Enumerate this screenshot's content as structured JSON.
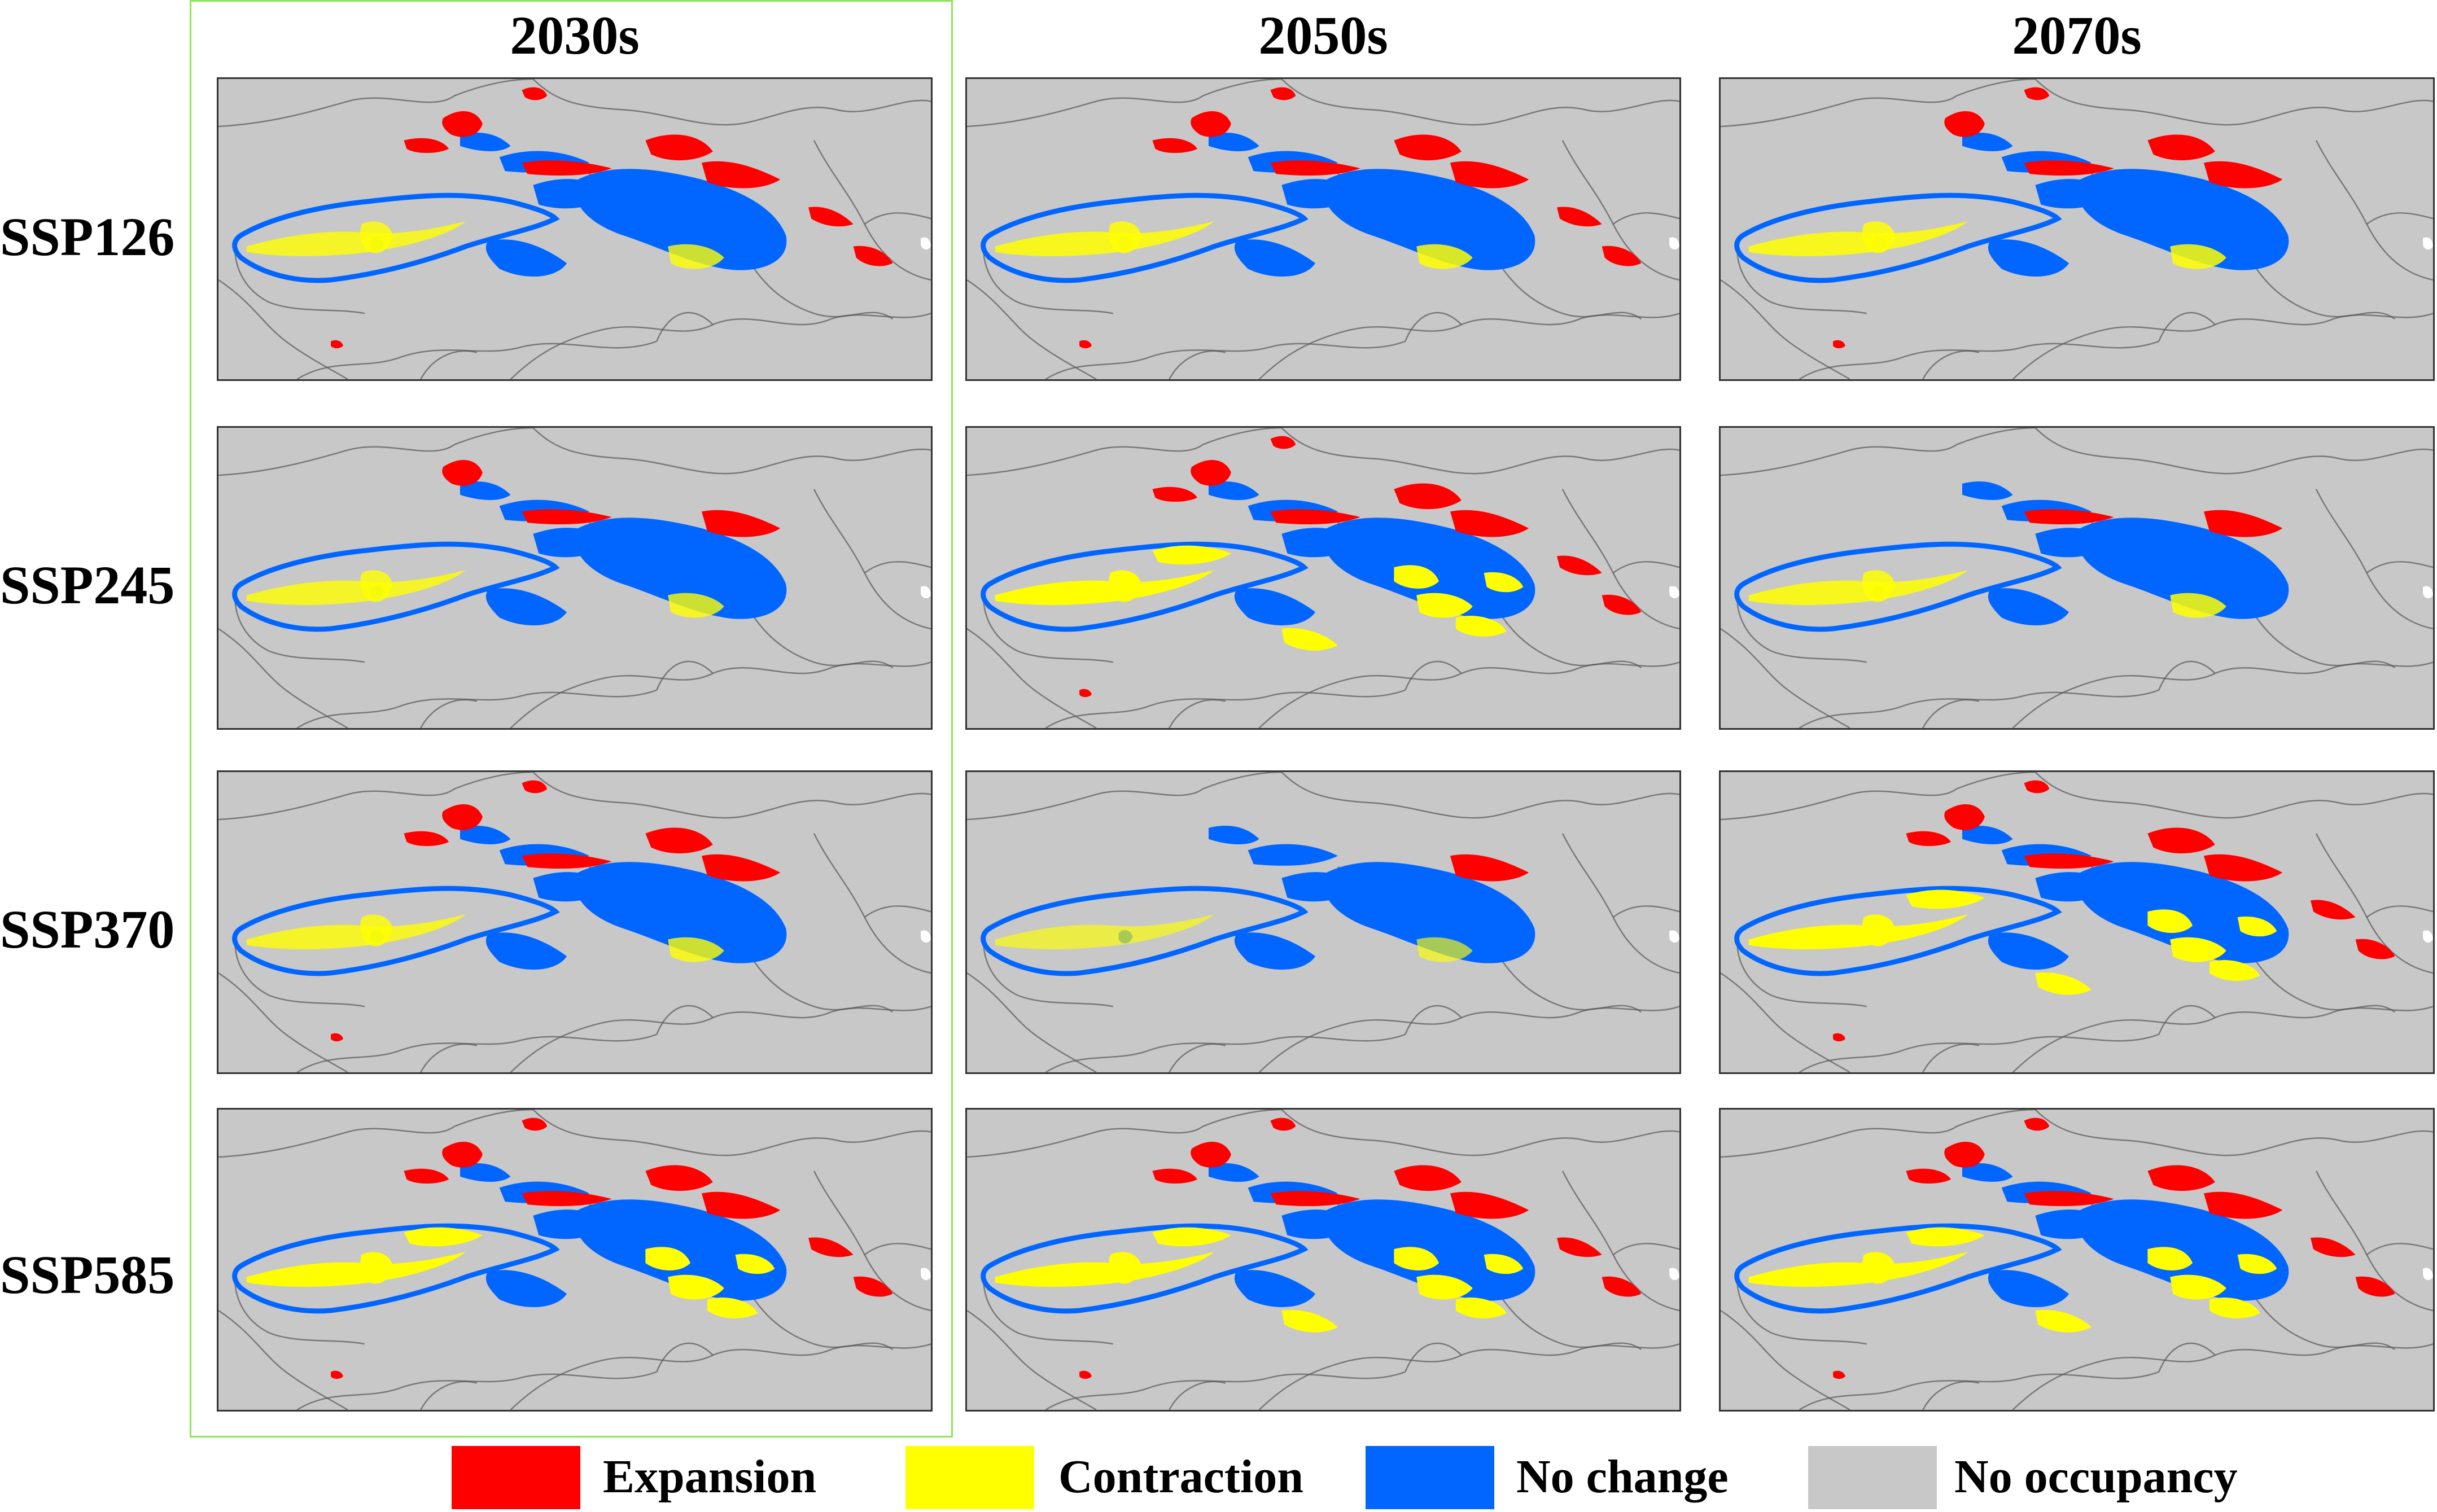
{
  "columns": [
    "2030s",
    "2050s",
    "2070s"
  ],
  "rows": [
    "SSP126",
    "SSP245",
    "SSP370",
    "SSP585"
  ],
  "selected_column": "2030s",
  "legend": [
    {
      "label": "Expansion",
      "color": "#ff0000"
    },
    {
      "label": "Contraction",
      "color": "#ffff00"
    },
    {
      "label": "No change",
      "color": "#0066ff"
    },
    {
      "label": "No occupancy",
      "color": "#c8c8c8"
    }
  ],
  "panels": [
    [
      {
        "expansion": 0.9,
        "contraction": 0.3
      },
      {
        "expansion": 0.75,
        "contraction": 0.35
      },
      {
        "expansion": 0.5,
        "contraction": 0.35
      }
    ],
    [
      {
        "expansion": 0.25,
        "contraction": 0.3
      },
      {
        "expansion": 0.9,
        "contraction": 0.9
      },
      {
        "expansion": 0.15,
        "contraction": 0.35
      }
    ],
    [
      {
        "expansion": 0.55,
        "contraction": 0.3
      },
      {
        "expansion": 0.05,
        "contraction": 0.15
      },
      {
        "expansion": 0.9,
        "contraction": 0.9
      }
    ],
    [
      {
        "expansion": 0.7,
        "contraction": 0.75
      },
      {
        "expansion": 0.8,
        "contraction": 0.85
      },
      {
        "expansion": 1.0,
        "contraction": 1.0
      }
    ]
  ]
}
